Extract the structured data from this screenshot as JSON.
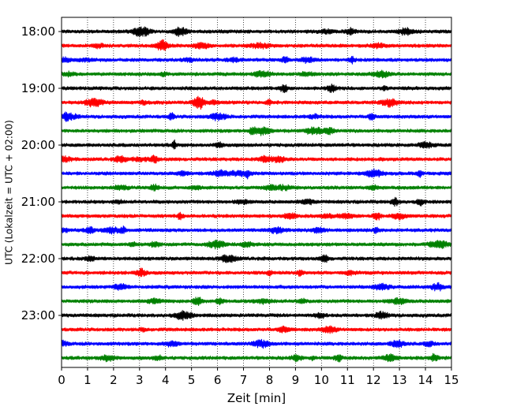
{
  "chart_data": {
    "type": "line",
    "title": "",
    "xlabel": "Zeit  [min]",
    "ylabel": "UTC (Lokalzeit = UTC + 02:00)",
    "xlim": [
      0,
      15
    ],
    "x_ticks": [
      "0",
      "1",
      "2",
      "3",
      "4",
      "5",
      "6",
      "7",
      "8",
      "9",
      "10",
      "11",
      "12",
      "13",
      "14",
      "15"
    ],
    "y_tick_labels": [
      "18:00",
      "19:00",
      "20:00",
      "21:00",
      "22:00",
      "23:00"
    ],
    "y_tick_rows": [
      0,
      4,
      8,
      12,
      16,
      20
    ],
    "row_interval_minutes": 15,
    "grid": "vertical dotted",
    "color_cycle": [
      "#000000",
      "#ff0000",
      "#0000ff",
      "#008000"
    ],
    "traces": [
      {
        "start": "18:00",
        "color": "#000000"
      },
      {
        "start": "18:15",
        "color": "#ff0000"
      },
      {
        "start": "18:30",
        "color": "#0000ff"
      },
      {
        "start": "18:45",
        "color": "#008000"
      },
      {
        "start": "19:00",
        "color": "#000000"
      },
      {
        "start": "19:15",
        "color": "#ff0000"
      },
      {
        "start": "19:30",
        "color": "#0000ff"
      },
      {
        "start": "19:45",
        "color": "#008000"
      },
      {
        "start": "20:00",
        "color": "#000000"
      },
      {
        "start": "20:15",
        "color": "#ff0000"
      },
      {
        "start": "20:30",
        "color": "#0000ff"
      },
      {
        "start": "20:45",
        "color": "#008000"
      },
      {
        "start": "21:00",
        "color": "#000000"
      },
      {
        "start": "21:15",
        "color": "#ff0000"
      },
      {
        "start": "21:30",
        "color": "#0000ff"
      },
      {
        "start": "21:45",
        "color": "#008000"
      },
      {
        "start": "22:00",
        "color": "#000000"
      },
      {
        "start": "22:15",
        "color": "#ff0000"
      },
      {
        "start": "22:30",
        "color": "#0000ff"
      },
      {
        "start": "22:45",
        "color": "#008000"
      },
      {
        "start": "23:00",
        "color": "#000000"
      },
      {
        "start": "23:15",
        "color": "#ff0000"
      },
      {
        "start": "23:30",
        "color": "#0000ff"
      },
      {
        "start": "23:45",
        "color": "#008000"
      }
    ]
  }
}
